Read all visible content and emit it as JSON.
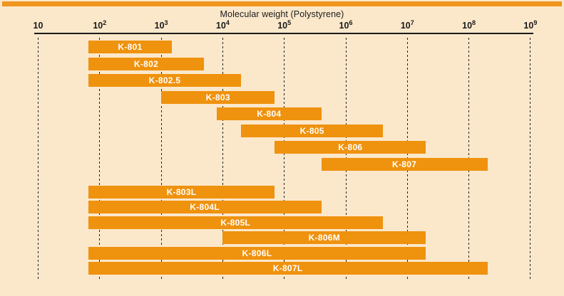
{
  "page": {
    "background_color": "#FBE8CB",
    "accent_stripe_color": "#F0951D"
  },
  "chart_data": {
    "type": "bar",
    "variant": "horizontal-range-bars",
    "title": "Molecular weight (Polystyrene)",
    "x_scale": "log10",
    "xlim": [
      10,
      1000000000
    ],
    "grid": "dashed-vertical-per-decade",
    "legend": "none",
    "bar_color": "#EF920E",
    "bar_label_color": "#FFFFFF",
    "x_ticks": [
      {
        "base": "10",
        "exponent": ""
      },
      {
        "base": "10",
        "exponent": "2"
      },
      {
        "base": "10",
        "exponent": "3"
      },
      {
        "base": "10",
        "exponent": "4"
      },
      {
        "base": "10",
        "exponent": "5"
      },
      {
        "base": "10",
        "exponent": "6"
      },
      {
        "base": "10",
        "exponent": "7"
      },
      {
        "base": "10",
        "exponent": "8"
      },
      {
        "base": "10",
        "exponent": "9"
      }
    ],
    "tick_powers": [
      1,
      2,
      3,
      4,
      5,
      6,
      7,
      8,
      9
    ],
    "series": [
      {
        "name": "K-801",
        "group": 0,
        "range": [
          65,
          1500
        ]
      },
      {
        "name": "K-802",
        "group": 0,
        "range": [
          65,
          5000
        ]
      },
      {
        "name": "K-802.5",
        "group": 0,
        "range": [
          65,
          20000
        ]
      },
      {
        "name": "K-803",
        "group": 0,
        "range": [
          1000,
          70000
        ]
      },
      {
        "name": "K-804",
        "group": 0,
        "range": [
          8000,
          400000
        ]
      },
      {
        "name": "K-805",
        "group": 0,
        "range": [
          20000,
          4000000
        ]
      },
      {
        "name": "K-806",
        "group": 0,
        "range": [
          70000,
          20000000
        ]
      },
      {
        "name": "K-807",
        "group": 0,
        "range": [
          400000,
          200000000
        ]
      },
      {
        "name": "K-803L",
        "group": 1,
        "range": [
          65,
          70000
        ]
      },
      {
        "name": "K-804L",
        "group": 1,
        "range": [
          65,
          400000
        ]
      },
      {
        "name": "K-805L",
        "group": 1,
        "range": [
          65,
          4000000
        ]
      },
      {
        "name": "K-806M",
        "group": 1,
        "range": [
          10000,
          20000000
        ]
      },
      {
        "name": "K-806L",
        "group": 1,
        "range": [
          65,
          20000000
        ]
      },
      {
        "name": "K-807L",
        "group": 1,
        "range": [
          65,
          200000000
        ]
      }
    ]
  }
}
